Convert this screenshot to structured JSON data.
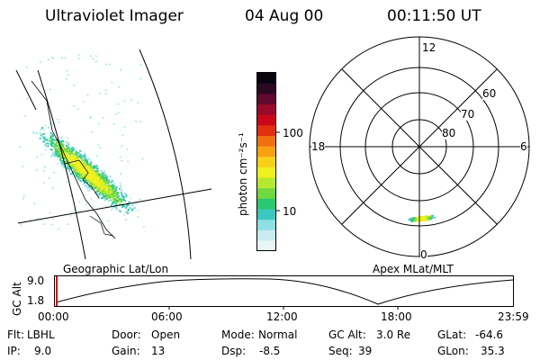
{
  "header": {
    "instrument": "Ultraviolet Imager",
    "date": "04 Aug 00",
    "time": "00:11:50 UT"
  },
  "geographic_panel": {
    "label": "Geographic Lat/Lon"
  },
  "colorbar": {
    "unit_label": "photon cm⁻²s⁻¹",
    "tick_100": "100",
    "tick_10": "10",
    "colors": [
      "#e8f6f8",
      "#c9ecef",
      "#8fe0e2",
      "#3cc8c0",
      "#2cc870",
      "#70d840",
      "#b6e830",
      "#eef020",
      "#f8d018",
      "#f8a010",
      "#f07010",
      "#e03010",
      "#c80818",
      "#9a0a2a",
      "#60082e",
      "#2a0a20",
      "#080410"
    ]
  },
  "polar_panel": {
    "label": "Apex MLat/MLT",
    "mlt_labels": {
      "top": "12",
      "left": "18",
      "right": "6",
      "bottom": "0"
    },
    "lat_labels": [
      "60",
      "70",
      "80"
    ]
  },
  "timeline": {
    "axis_label": "GC Alt",
    "y_high": "9.0",
    "y_low": "1.8",
    "ticks": [
      "00:00",
      "06:00",
      "12:00",
      "18:00",
      "23:59"
    ],
    "marker_color": "#d01010"
  },
  "info": {
    "filter_label": "Flt:",
    "filter_value": "LBHL",
    "ip_label": "IP:",
    "ip_value": "9.0",
    "door_label": "Door:",
    "door_value": "Open",
    "gain_label": "Gain:",
    "gain_value": "13",
    "mode_label": "Mode:",
    "mode_value": "Normal",
    "dsp_label": "Dsp:",
    "dsp_value": "-8.5",
    "gcalt_label": "GC Alt:",
    "gcalt_value": "3.0 Re",
    "seq_label": "Seq:",
    "seq_value": "39",
    "glat_label": "GLat:",
    "glat_value": "-64.6",
    "glon_label": "GLon:",
    "glon_value": "35.3"
  }
}
